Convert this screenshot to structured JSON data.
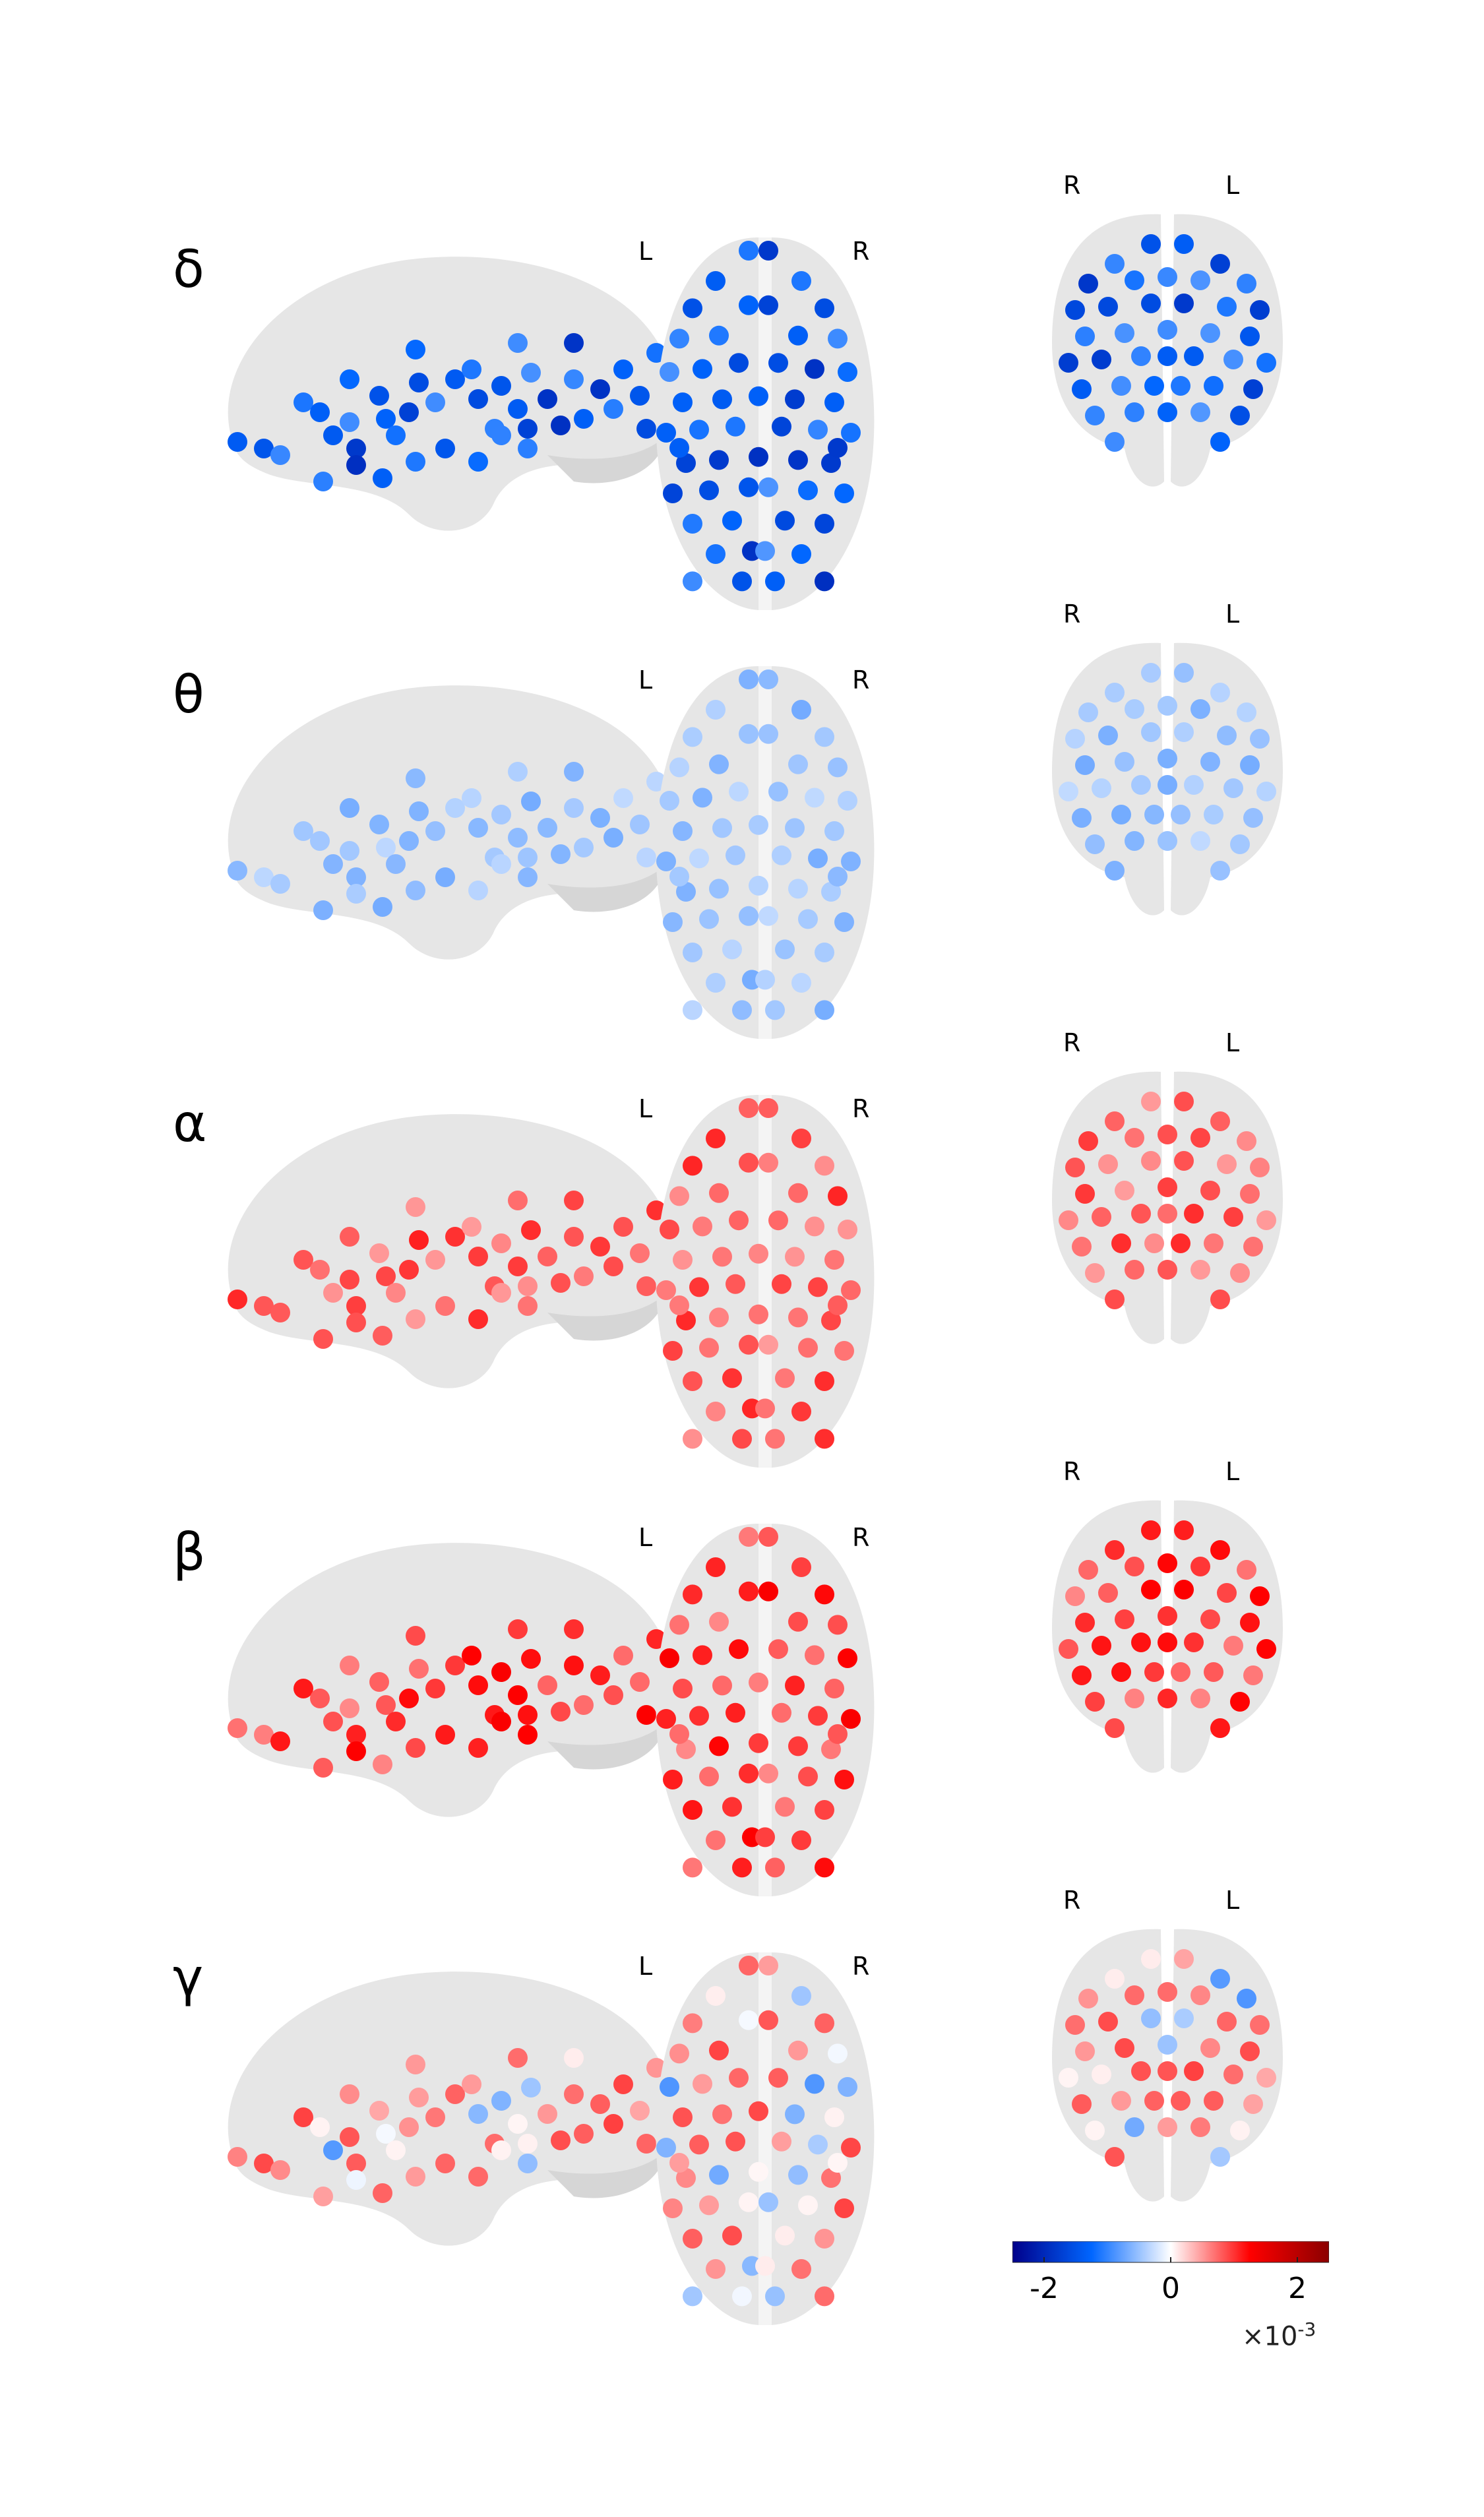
{
  "rows": [
    {
      "band": "δ",
      "sign": -1,
      "strength": 0.62
    },
    {
      "band": "θ",
      "sign": -1,
      "strength": 0.22
    },
    {
      "band": "α",
      "sign": 1,
      "strength": 0.35
    },
    {
      "band": "β",
      "sign": 1,
      "strength": 0.42
    },
    {
      "band": "γ",
      "sign": 0,
      "strength": 0.3
    }
  ],
  "orientation": {
    "axial_left": "L",
    "axial_right": "R",
    "coronal_left": "R",
    "coronal_right": "L"
  },
  "colorbar": {
    "colormap": [
      "#00008b",
      "#0066ff",
      "#ffffff",
      "#ff0000",
      "#8b0000"
    ],
    "range": [
      -2.5,
      2.5
    ],
    "ticks": [
      {
        "value": -2,
        "label": "-2"
      },
      {
        "value": 0,
        "label": "0"
      },
      {
        "value": 2,
        "label": "2"
      }
    ],
    "exponent_prefix": "×10",
    "exponent": "-3"
  },
  "colors": {
    "brain": "#e6e6e6",
    "brain_shade": "#d6d6d6"
  }
}
